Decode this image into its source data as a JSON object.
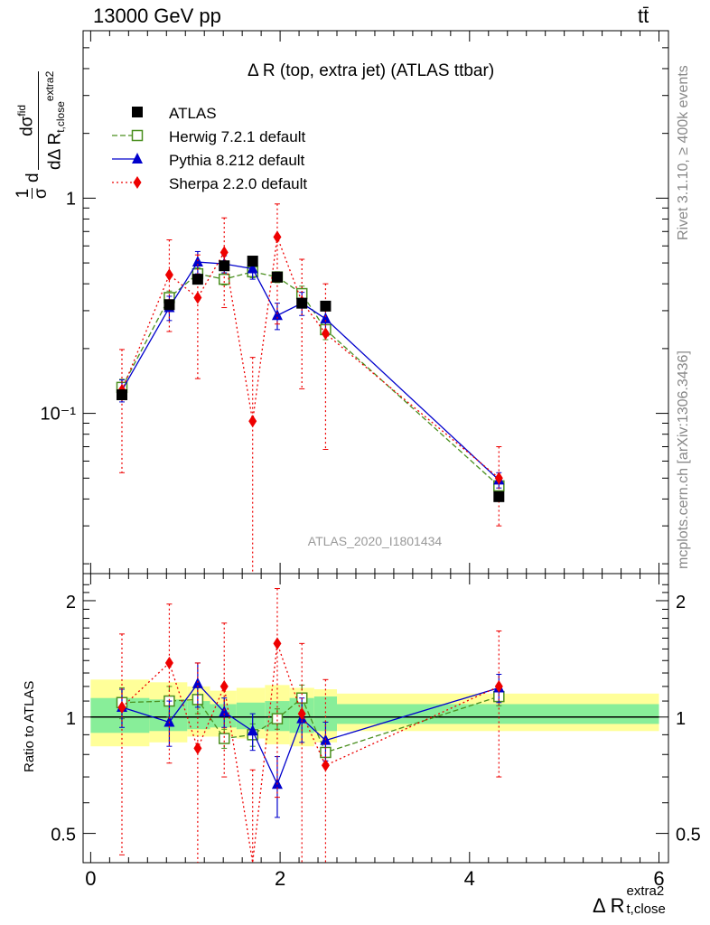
{
  "header": {
    "left": "13000 GeV pp",
    "right": "tt̄"
  },
  "side_labels": {
    "rivet": "Rivet 3.1.10, ≥ 400k events",
    "mcplots": "mcplots.cern.ch [arXiv:1306.3436]"
  },
  "chart_data": [
    {
      "type": "line",
      "title": "Δ R (top, extra jet) (ATLAS ttbar)",
      "ylabel": "1/σ dσ^fid / dΔ R_{t,close}^{extra2}",
      "ylabel_parts": {
        "frac1": "1",
        "sigma": "σ",
        "d": "d",
        "dsig": "dσ",
        "fid": "fid",
        "den": "dΔ R",
        "sub": "t,close",
        "sup": "extra2"
      },
      "y_scale": "log",
      "ylim": [
        0.018,
        6
      ],
      "xlim": [
        -0.08,
        6.1
      ],
      "y_tick_labels": [
        {
          "value": 1,
          "text": "1"
        },
        {
          "value": 0.1,
          "text": "10⁻¹"
        }
      ],
      "watermark": "ATLAS_2020_I1801434",
      "legend_position": "top-left",
      "x": [
        0.33,
        0.83,
        1.13,
        1.41,
        1.71,
        1.97,
        2.23,
        2.48,
        4.31
      ],
      "series": [
        {
          "name": "ATLAS",
          "color": "#000000",
          "marker": "square",
          "values": [
            0.122,
            0.32,
            0.42,
            0.485,
            0.51,
            0.43,
            0.325,
            0.315,
            0.041
          ]
        },
        {
          "name": "Herwig 7.2.1 default",
          "color": "#4a8f1f",
          "marker": "open-square",
          "dash": "6,3",
          "values": [
            0.132,
            0.345,
            0.445,
            0.42,
            0.455,
            0.43,
            0.36,
            0.245,
            0.046
          ],
          "err": [
            0.012,
            0.025,
            0.03,
            0.025,
            0.028,
            0.025,
            0.03,
            0.025,
            0.004
          ]
        },
        {
          "name": "Pythia 8.212 default",
          "color": "#0000cc",
          "marker": "triangle",
          "values": [
            0.128,
            0.31,
            0.505,
            0.495,
            0.47,
            0.285,
            0.325,
            0.275,
            0.049
          ],
          "err": [
            0.015,
            0.04,
            0.06,
            0.045,
            0.05,
            0.04,
            0.04,
            0.035,
            0.004
          ]
        },
        {
          "name": "Sherpa 2.2.0 default",
          "color": "#ee0000",
          "marker": "diamond",
          "dash": "2,3",
          "values": [
            0.128,
            0.44,
            0.345,
            0.56,
            0.092,
            0.66,
            0.33,
            0.235,
            0.05
          ],
          "err_low": [
            0.075,
            0.2,
            0.2,
            0.25,
            0.092,
            0.4,
            0.2,
            0.167,
            0.02
          ],
          "err_high": [
            0.07,
            0.2,
            0.2,
            0.25,
            0.09,
            0.28,
            0.19,
            0.165,
            0.02
          ]
        }
      ]
    },
    {
      "type": "line",
      "ylabel": "Ratio to ATLAS",
      "xlabel": "Δ R",
      "xlabel_sub": "t,close",
      "xlabel_sup": "extra2",
      "y_scale": "log",
      "ylim": [
        0.42,
        2.35
      ],
      "xlim": [
        -0.08,
        6.1
      ],
      "x_ticks": [
        0,
        2,
        4,
        6
      ],
      "y_ticks": [
        0.5,
        1,
        2
      ],
      "bands": {
        "edges": [
          0,
          0.62,
          1.02,
          1.26,
          1.54,
          1.84,
          2.1,
          2.36,
          2.6,
          6.0
        ],
        "yellow": [
          [
            0.84,
            1.25
          ],
          [
            0.86,
            1.23
          ],
          [
            0.89,
            1.2
          ],
          [
            0.89,
            1.17
          ],
          [
            0.88,
            1.19
          ],
          [
            0.85,
            1.21
          ],
          [
            0.84,
            1.19
          ],
          [
            0.86,
            1.18
          ],
          [
            0.92,
            1.15
          ]
        ],
        "green": [
          [
            0.91,
            1.12
          ],
          [
            0.92,
            1.11
          ],
          [
            0.93,
            1.1
          ],
          [
            0.94,
            1.08
          ],
          [
            0.93,
            1.09
          ],
          [
            0.92,
            1.1
          ],
          [
            0.91,
            1.12
          ],
          [
            0.92,
            1.13
          ],
          [
            0.96,
            1.08
          ]
        ],
        "yellow_color": "#ffff99",
        "green_color": "#88ee99"
      },
      "x": [
        0.33,
        0.83,
        1.13,
        1.41,
        1.71,
        1.97,
        2.23,
        2.48,
        4.31
      ],
      "series": [
        {
          "name": "Herwig 7.2.1 default",
          "color": "#4a8f1f",
          "marker": "open-square",
          "dash": "6,3",
          "values": [
            1.09,
            1.1,
            1.11,
            0.88,
            0.9,
            0.99,
            1.12,
            0.81,
            1.13
          ],
          "err": [
            0.1,
            0.1,
            0.09,
            0.05,
            0.06,
            0.06,
            0.09,
            0.06,
            0.06
          ]
        },
        {
          "name": "Pythia 8.212 default",
          "color": "#0000cc",
          "marker": "triangle",
          "values": [
            1.06,
            0.97,
            1.22,
            1.03,
            0.92,
            0.67,
            0.99,
            0.87,
            1.19
          ],
          "err": [
            0.12,
            0.13,
            0.16,
            0.09,
            0.1,
            0.12,
            0.13,
            0.1,
            0.1
          ]
        },
        {
          "name": "Sherpa 2.2.0 default",
          "color": "#ee0000",
          "marker": "diamond",
          "dash": "2,3",
          "values": [
            1.06,
            1.38,
            0.83,
            1.2,
            0.18,
            1.55,
            1.02,
            0.75,
            1.2
          ],
          "err_low": [
            0.62,
            0.62,
            0.5,
            0.5,
            0.18,
            0.93,
            0.62,
            0.55,
            0.5
          ],
          "err_high": [
            0.58,
            0.58,
            0.55,
            0.55,
            0.55,
            0.6,
            0.53,
            0.5,
            0.47
          ]
        }
      ]
    }
  ]
}
